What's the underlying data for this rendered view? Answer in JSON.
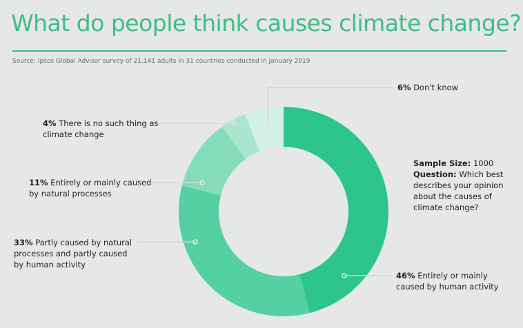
{
  "title": "What do people think causes climate change?",
  "source": "Source: Ipsos Global Advisor survey of 21,141 adults in 31 countries conducted in January 2019",
  "note": {
    "sample_label": "Sample Size:",
    "sample_value": "1000",
    "question_label": "Question:",
    "question_text": "Which best describes your opinion about the causes of climate change?"
  },
  "chart_data": {
    "type": "pie",
    "donut": true,
    "unit": "%",
    "slices": [
      {
        "value": 46,
        "pct": "46%",
        "label": "Entirely or mainly caused by human activity",
        "color": "#2dc58b"
      },
      {
        "value": 33,
        "pct": "33%",
        "label": "Partly caused by natural processes and partly caused by human activity",
        "color": "#55d0a2"
      },
      {
        "value": 11,
        "pct": "11%",
        "label": "Entirely or mainly caused by natural processes",
        "color": "#84dcba"
      },
      {
        "value": 4,
        "pct": "4%",
        "label": "There is no such thing as climate change",
        "color": "#a8e6cf"
      },
      {
        "value": 6,
        "pct": "6%",
        "label": "Don't know",
        "color": "#d3f0e6"
      }
    ]
  }
}
